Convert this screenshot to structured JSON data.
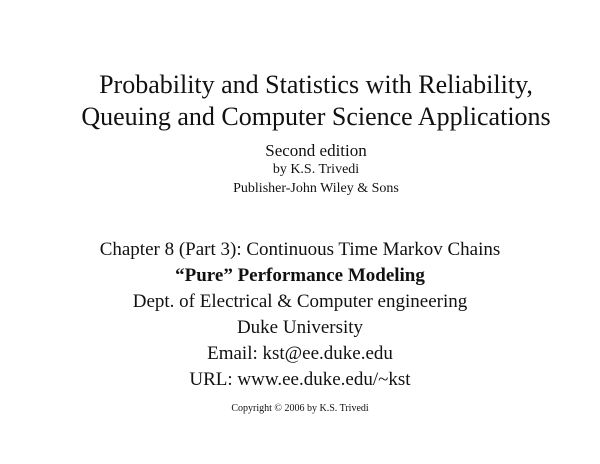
{
  "slide": {
    "title_line1": "Probability and Statistics with Reliability,",
    "title_line2": "Queuing and Computer Science Applications",
    "edition": "Second edition",
    "author": "by K.S. Trivedi",
    "publisher": "Publisher-John Wiley & Sons",
    "chapter": "Chapter 8 (Part 3): Continuous Time Markov Chains",
    "subtitle": "“Pure” Performance Modeling",
    "department": "Dept. of Electrical & Computer engineering",
    "university": "Duke University",
    "email": "Email: kst@ee.duke.edu",
    "url": "URL: www.ee.duke.edu/~kst",
    "copyright": "Copyright © 2006 by K.S. Trivedi"
  }
}
